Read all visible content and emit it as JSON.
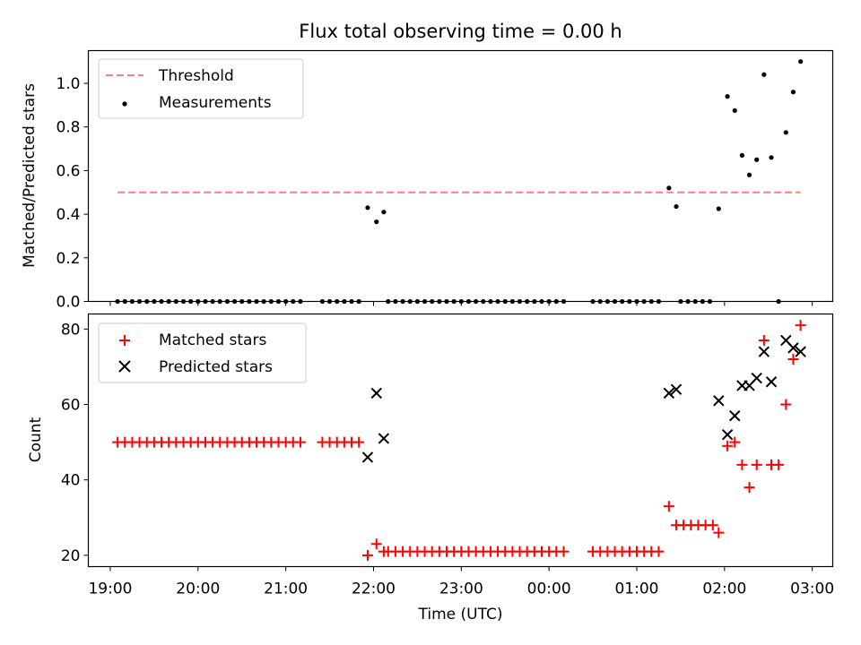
{
  "title": "Flux total observing time = 0.00 h",
  "colors": {
    "threshold": "#ff7f7f",
    "measurement": "#000000",
    "matched": "#ff0000",
    "predicted": "#000000"
  },
  "chart_data": [
    {
      "type": "scatter",
      "panel": "top",
      "ylabel": "Matched/Predicted stars",
      "ylim": [
        0,
        1.15
      ],
      "xlim": [
        "18:45",
        "03:14"
      ],
      "grid": false,
      "legend_position": "upper-left",
      "yticks": [
        "0.0",
        "0.2",
        "0.4",
        "0.6",
        "0.8",
        "1.0"
      ],
      "threshold": {
        "name": "Threshold",
        "y": 0.5,
        "x_range": [
          "19:05",
          "02:52"
        ]
      },
      "series": [
        {
          "name": "Measurements",
          "points": [
            [
              "19:05",
              0
            ],
            [
              "19:10",
              0
            ],
            [
              "19:15",
              0
            ],
            [
              "19:20",
              0
            ],
            [
              "19:25",
              0
            ],
            [
              "19:30",
              0
            ],
            [
              "19:35",
              0
            ],
            [
              "19:40",
              0
            ],
            [
              "19:45",
              0
            ],
            [
              "19:50",
              0
            ],
            [
              "19:55",
              0
            ],
            [
              "20:00",
              0
            ],
            [
              "20:05",
              0
            ],
            [
              "20:10",
              0
            ],
            [
              "20:15",
              0
            ],
            [
              "20:20",
              0
            ],
            [
              "20:25",
              0
            ],
            [
              "20:30",
              0
            ],
            [
              "20:35",
              0
            ],
            [
              "20:40",
              0
            ],
            [
              "20:45",
              0
            ],
            [
              "20:50",
              0
            ],
            [
              "20:55",
              0
            ],
            [
              "21:00",
              0
            ],
            [
              "21:05",
              0
            ],
            [
              "21:10",
              0
            ],
            [
              "21:25",
              0
            ],
            [
              "21:30",
              0
            ],
            [
              "21:35",
              0
            ],
            [
              "21:40",
              0
            ],
            [
              "21:45",
              0
            ],
            [
              "21:50",
              0
            ],
            [
              "21:56",
              0.43
            ],
            [
              "22:02",
              0.365
            ],
            [
              "22:07",
              0.41
            ],
            [
              "22:10",
              0
            ],
            [
              "22:15",
              0
            ],
            [
              "22:20",
              0
            ],
            [
              "22:25",
              0
            ],
            [
              "22:30",
              0
            ],
            [
              "22:35",
              0
            ],
            [
              "22:40",
              0
            ],
            [
              "22:45",
              0
            ],
            [
              "22:50",
              0
            ],
            [
              "22:55",
              0
            ],
            [
              "23:00",
              0
            ],
            [
              "23:05",
              0
            ],
            [
              "23:10",
              0
            ],
            [
              "23:15",
              0
            ],
            [
              "23:20",
              0
            ],
            [
              "23:25",
              0
            ],
            [
              "23:30",
              0
            ],
            [
              "23:35",
              0
            ],
            [
              "23:40",
              0
            ],
            [
              "23:45",
              0
            ],
            [
              "23:50",
              0
            ],
            [
              "23:55",
              0
            ],
            [
              "00:00",
              0
            ],
            [
              "00:05",
              0
            ],
            [
              "00:10",
              0
            ],
            [
              "00:30",
              0
            ],
            [
              "00:35",
              0
            ],
            [
              "00:40",
              0
            ],
            [
              "00:45",
              0
            ],
            [
              "00:50",
              0
            ],
            [
              "00:55",
              0
            ],
            [
              "01:00",
              0
            ],
            [
              "01:05",
              0
            ],
            [
              "01:10",
              0
            ],
            [
              "01:15",
              0
            ],
            [
              "01:22",
              0.52
            ],
            [
              "01:27",
              0.435
            ],
            [
              "01:30",
              0
            ],
            [
              "01:35",
              0
            ],
            [
              "01:40",
              0
            ],
            [
              "01:45",
              0
            ],
            [
              "01:50",
              0
            ],
            [
              "01:56",
              0.425
            ],
            [
              "02:02",
              0.94
            ],
            [
              "02:07",
              0.875
            ],
            [
              "02:12",
              0.67
            ],
            [
              "02:17",
              0.58
            ],
            [
              "02:22",
              0.65
            ],
            [
              "02:27",
              1.04
            ],
            [
              "02:32",
              0.66
            ],
            [
              "02:37",
              0
            ],
            [
              "02:42",
              0.775
            ],
            [
              "02:47",
              0.96
            ],
            [
              "02:52",
              1.1
            ]
          ]
        }
      ]
    },
    {
      "type": "scatter",
      "panel": "bottom",
      "xlabel": "Time (UTC)",
      "ylabel": "Count",
      "ylim": [
        17,
        84
      ],
      "xlim": [
        "18:45",
        "03:14"
      ],
      "grid": false,
      "legend_position": "upper-left",
      "yticks": [
        "20",
        "40",
        "60",
        "80"
      ],
      "xticks": [
        "19:00",
        "20:00",
        "21:00",
        "22:00",
        "23:00",
        "00:00",
        "01:00",
        "02:00",
        "03:00"
      ],
      "series": [
        {
          "name": "Matched stars",
          "marker": "+",
          "points": [
            [
              "19:05",
              50
            ],
            [
              "19:10",
              50
            ],
            [
              "19:15",
              50
            ],
            [
              "19:20",
              50
            ],
            [
              "19:25",
              50
            ],
            [
              "19:30",
              50
            ],
            [
              "19:35",
              50
            ],
            [
              "19:40",
              50
            ],
            [
              "19:45",
              50
            ],
            [
              "19:50",
              50
            ],
            [
              "19:55",
              50
            ],
            [
              "20:00",
              50
            ],
            [
              "20:05",
              50
            ],
            [
              "20:10",
              50
            ],
            [
              "20:15",
              50
            ],
            [
              "20:20",
              50
            ],
            [
              "20:25",
              50
            ],
            [
              "20:30",
              50
            ],
            [
              "20:35",
              50
            ],
            [
              "20:40",
              50
            ],
            [
              "20:45",
              50
            ],
            [
              "20:50",
              50
            ],
            [
              "20:55",
              50
            ],
            [
              "21:00",
              50
            ],
            [
              "21:05",
              50
            ],
            [
              "21:10",
              50
            ],
            [
              "21:25",
              50
            ],
            [
              "21:30",
              50
            ],
            [
              "21:35",
              50
            ],
            [
              "21:40",
              50
            ],
            [
              "21:45",
              50
            ],
            [
              "21:50",
              50
            ],
            [
              "21:56",
              20
            ],
            [
              "22:02",
              23
            ],
            [
              "22:07",
              21
            ],
            [
              "22:10",
              21
            ],
            [
              "22:15",
              21
            ],
            [
              "22:20",
              21
            ],
            [
              "22:25",
              21
            ],
            [
              "22:30",
              21
            ],
            [
              "22:35",
              21
            ],
            [
              "22:40",
              21
            ],
            [
              "22:45",
              21
            ],
            [
              "22:50",
              21
            ],
            [
              "22:55",
              21
            ],
            [
              "23:00",
              21
            ],
            [
              "23:05",
              21
            ],
            [
              "23:10",
              21
            ],
            [
              "23:15",
              21
            ],
            [
              "23:20",
              21
            ],
            [
              "23:25",
              21
            ],
            [
              "23:30",
              21
            ],
            [
              "23:35",
              21
            ],
            [
              "23:40",
              21
            ],
            [
              "23:45",
              21
            ],
            [
              "23:50",
              21
            ],
            [
              "23:55",
              21
            ],
            [
              "00:00",
              21
            ],
            [
              "00:05",
              21
            ],
            [
              "00:10",
              21
            ],
            [
              "00:30",
              21
            ],
            [
              "00:35",
              21
            ],
            [
              "00:40",
              21
            ],
            [
              "00:45",
              21
            ],
            [
              "00:50",
              21
            ],
            [
              "00:55",
              21
            ],
            [
              "01:00",
              21
            ],
            [
              "01:05",
              21
            ],
            [
              "01:10",
              21
            ],
            [
              "01:15",
              21
            ],
            [
              "01:22",
              33
            ],
            [
              "01:27",
              28
            ],
            [
              "01:32",
              28
            ],
            [
              "01:37",
              28
            ],
            [
              "01:42",
              28
            ],
            [
              "01:47",
              28
            ],
            [
              "01:52",
              28
            ],
            [
              "01:56",
              26
            ],
            [
              "02:02",
              49
            ],
            [
              "02:07",
              50
            ],
            [
              "02:12",
              44
            ],
            [
              "02:17",
              38
            ],
            [
              "02:22",
              44
            ],
            [
              "02:27",
              77
            ],
            [
              "02:32",
              44
            ],
            [
              "02:37",
              44
            ],
            [
              "02:42",
              60
            ],
            [
              "02:47",
              72
            ],
            [
              "02:52",
              81
            ]
          ]
        },
        {
          "name": "Predicted stars",
          "marker": "x",
          "points": [
            [
              "21:56",
              46
            ],
            [
              "22:02",
              63
            ],
            [
              "22:07",
              51
            ],
            [
              "01:22",
              63
            ],
            [
              "01:27",
              64
            ],
            [
              "01:56",
              61
            ],
            [
              "02:02",
              52
            ],
            [
              "02:07",
              57
            ],
            [
              "02:12",
              65
            ],
            [
              "02:17",
              65
            ],
            [
              "02:22",
              67
            ],
            [
              "02:27",
              74
            ],
            [
              "02:32",
              66
            ],
            [
              "02:42",
              77
            ],
            [
              "02:47",
              75
            ],
            [
              "02:52",
              74
            ]
          ]
        }
      ]
    }
  ]
}
